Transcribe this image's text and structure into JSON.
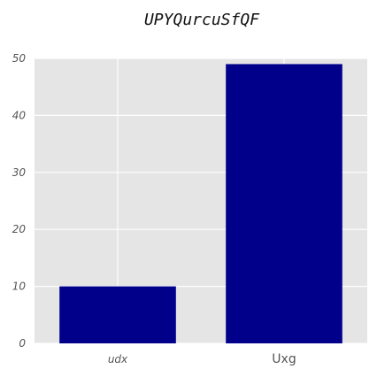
{
  "chart_data": {
    "type": "bar",
    "title": "UPYQurcuSfQF",
    "categories": [
      "udx",
      "Uxg"
    ],
    "values": [
      10,
      49
    ],
    "ylim": [
      0,
      50
    ],
    "yticks": [
      "0",
      "10",
      "20",
      "30",
      "40",
      "50"
    ],
    "grid": true,
    "xlabel": "",
    "ylabel": "",
    "colors": {
      "bar": "#00008b",
      "plot_background": "#e5e5e5",
      "grid": "#ffffff"
    }
  }
}
